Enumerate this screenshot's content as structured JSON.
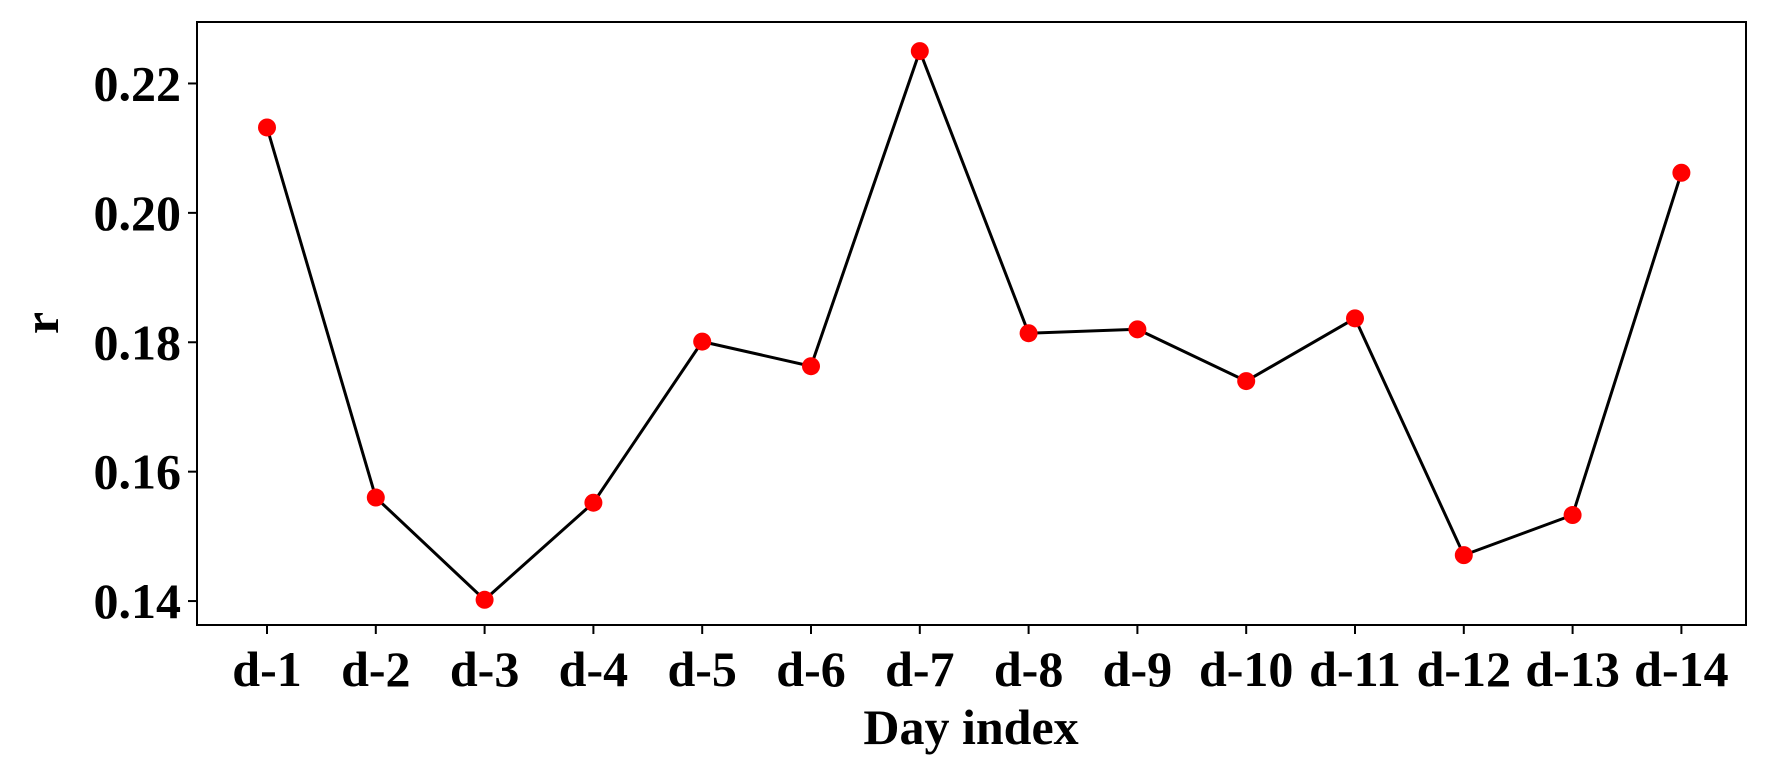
{
  "chart_data": {
    "type": "line",
    "title": "",
    "xlabel": "Day index",
    "ylabel": "r",
    "categories": [
      "d-1",
      "d-2",
      "d-3",
      "d-4",
      "d-5",
      "d-6",
      "d-7",
      "d-8",
      "d-9",
      "d-10",
      "d-11",
      "d-12",
      "d-13",
      "d-14"
    ],
    "series": [
      {
        "values": [
          0.2132,
          0.156,
          0.1402,
          0.1552,
          0.1801,
          0.1763,
          0.225,
          0.1814,
          0.182,
          0.174,
          0.1837,
          0.1471,
          0.1533,
          0.2062
        ],
        "line_color": "#000000",
        "marker_color": "#ff0000"
      }
    ],
    "ylim": [
      0.1363,
      0.2295
    ],
    "yticks": [
      0.14,
      0.16,
      0.18,
      0.2,
      0.22
    ],
    "ytick_labels": [
      "0.14",
      "0.16",
      "0.18",
      "0.20",
      "0.22"
    ],
    "grid": false,
    "legend": "none"
  }
}
